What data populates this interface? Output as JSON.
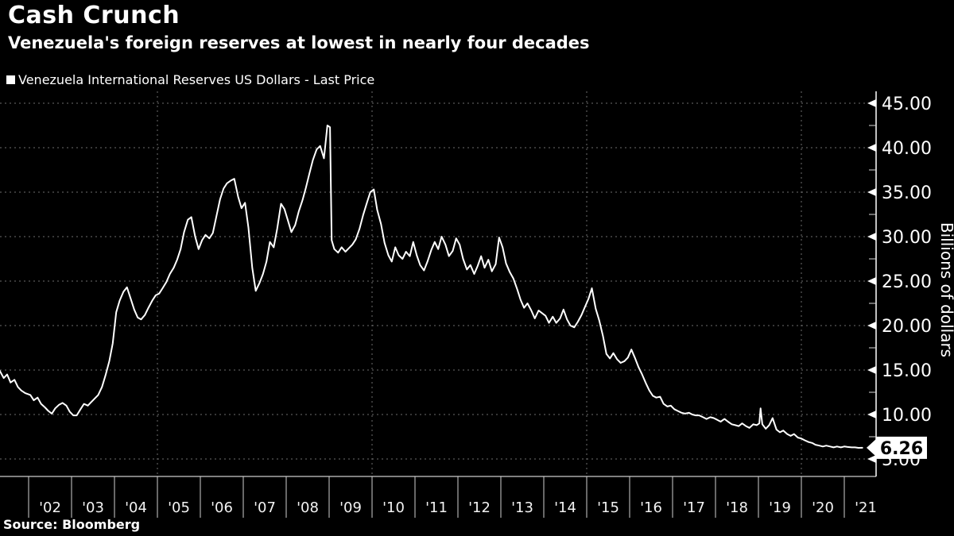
{
  "header": {
    "title": "Cash Crunch",
    "subtitle": "Venezuela's foreign reserves at lowest in nearly four decades"
  },
  "legend": {
    "label": "Venezuela International Reserves US Dollars - Last Price"
  },
  "source_note": "Source: Bloomberg",
  "last_price": {
    "value": "6.26"
  },
  "colors": {
    "background": "#000000",
    "line": "#ffffff",
    "grid": "#6e6e6e",
    "axis": "#ffffff",
    "tick_label": "#f2f2f2",
    "last_price_box_bg": "#ffffff",
    "last_price_text": "#000000"
  },
  "chart_data": {
    "type": "line",
    "title": "Cash Crunch",
    "subtitle": "Venezuela's foreign reserves at lowest in nearly four decades",
    "xlabel": "",
    "ylabel": "Billions of dollars",
    "legend_position": "top-left",
    "grid": "dashed",
    "ylim": [
      3.0,
      46.3
    ],
    "xlim": [
      2001.3,
      2021.7
    ],
    "y_major_ticks": [
      5,
      10,
      15,
      20,
      25,
      30,
      35,
      40,
      45
    ],
    "y_minor_step": 2.5,
    "x_tick_labels": [
      "'02",
      "'03",
      "'04",
      "'05",
      "'06",
      "'07",
      "'08",
      "'09",
      "'10",
      "'11",
      "'12",
      "'13",
      "'14",
      "'15",
      "'16",
      "'17",
      "'18",
      "'19",
      "'20",
      "'21"
    ],
    "x_tick_years": [
      2002,
      2003,
      2004,
      2005,
      2006,
      2007,
      2008,
      2009,
      2010,
      2011,
      2012,
      2013,
      2014,
      2015,
      2016,
      2017,
      2018,
      2019,
      2020,
      2021
    ],
    "x_gridline_years": [
      2005,
      2010,
      2015,
      2020
    ],
    "series": [
      {
        "name": "Venezuela International Reserves US Dollars - Last Price",
        "units": "billions of US dollars",
        "last_price": 6.26,
        "points": [
          [
            2001.33,
            14.9
          ],
          [
            2001.42,
            14.1
          ],
          [
            2001.5,
            14.5
          ],
          [
            2001.58,
            13.6
          ],
          [
            2001.67,
            13.9
          ],
          [
            2001.75,
            13.1
          ],
          [
            2001.83,
            12.7
          ],
          [
            2001.92,
            12.4
          ],
          [
            2002.04,
            12.2
          ],
          [
            2002.12,
            11.6
          ],
          [
            2002.21,
            11.9
          ],
          [
            2002.29,
            11.2
          ],
          [
            2002.38,
            10.8
          ],
          [
            2002.46,
            10.4
          ],
          [
            2002.54,
            10.1
          ],
          [
            2002.62,
            10.7
          ],
          [
            2002.71,
            11.1
          ],
          [
            2002.79,
            11.3
          ],
          [
            2002.88,
            11.0
          ],
          [
            2002.96,
            10.3
          ],
          [
            2003.04,
            9.9
          ],
          [
            2003.12,
            9.9
          ],
          [
            2003.21,
            10.6
          ],
          [
            2003.29,
            11.2
          ],
          [
            2003.38,
            11.0
          ],
          [
            2003.46,
            11.4
          ],
          [
            2003.54,
            11.8
          ],
          [
            2003.62,
            12.2
          ],
          [
            2003.71,
            13.1
          ],
          [
            2003.79,
            14.4
          ],
          [
            2003.88,
            16.0
          ],
          [
            2003.96,
            18.0
          ],
          [
            2004.04,
            21.5
          ],
          [
            2004.12,
            22.8
          ],
          [
            2004.21,
            23.8
          ],
          [
            2004.29,
            24.3
          ],
          [
            2004.38,
            23.0
          ],
          [
            2004.46,
            21.8
          ],
          [
            2004.54,
            20.9
          ],
          [
            2004.62,
            20.7
          ],
          [
            2004.71,
            21.2
          ],
          [
            2004.79,
            22.0
          ],
          [
            2004.88,
            22.8
          ],
          [
            2004.96,
            23.4
          ],
          [
            2005.04,
            23.6
          ],
          [
            2005.12,
            24.2
          ],
          [
            2005.21,
            24.9
          ],
          [
            2005.29,
            25.8
          ],
          [
            2005.38,
            26.5
          ],
          [
            2005.46,
            27.4
          ],
          [
            2005.54,
            28.6
          ],
          [
            2005.62,
            30.5
          ],
          [
            2005.71,
            31.9
          ],
          [
            2005.79,
            32.2
          ],
          [
            2005.88,
            30.0
          ],
          [
            2005.96,
            28.6
          ],
          [
            2006.04,
            29.6
          ],
          [
            2006.12,
            30.2
          ],
          [
            2006.21,
            29.8
          ],
          [
            2006.29,
            30.4
          ],
          [
            2006.38,
            32.4
          ],
          [
            2006.46,
            34.2
          ],
          [
            2006.54,
            35.4
          ],
          [
            2006.62,
            36.0
          ],
          [
            2006.71,
            36.3
          ],
          [
            2006.79,
            36.5
          ],
          [
            2006.88,
            34.5
          ],
          [
            2006.96,
            33.2
          ],
          [
            2007.04,
            33.8
          ],
          [
            2007.12,
            31.0
          ],
          [
            2007.21,
            26.5
          ],
          [
            2007.29,
            23.9
          ],
          [
            2007.38,
            24.8
          ],
          [
            2007.46,
            25.8
          ],
          [
            2007.54,
            27.2
          ],
          [
            2007.62,
            29.4
          ],
          [
            2007.71,
            28.8
          ],
          [
            2007.79,
            30.9
          ],
          [
            2007.88,
            33.7
          ],
          [
            2007.96,
            33.1
          ],
          [
            2008.04,
            31.8
          ],
          [
            2008.12,
            30.5
          ],
          [
            2008.21,
            31.3
          ],
          [
            2008.29,
            32.8
          ],
          [
            2008.38,
            34.1
          ],
          [
            2008.46,
            35.5
          ],
          [
            2008.54,
            37.1
          ],
          [
            2008.62,
            38.6
          ],
          [
            2008.71,
            39.8
          ],
          [
            2008.79,
            40.2
          ],
          [
            2008.88,
            38.8
          ],
          [
            2008.96,
            42.5
          ],
          [
            2009.02,
            42.3
          ],
          [
            2009.06,
            29.6
          ],
          [
            2009.12,
            28.6
          ],
          [
            2009.21,
            28.2
          ],
          [
            2009.29,
            28.8
          ],
          [
            2009.38,
            28.3
          ],
          [
            2009.46,
            28.7
          ],
          [
            2009.54,
            29.1
          ],
          [
            2009.62,
            29.7
          ],
          [
            2009.71,
            30.9
          ],
          [
            2009.79,
            32.4
          ],
          [
            2009.88,
            33.8
          ],
          [
            2009.96,
            35.0
          ],
          [
            2010.04,
            35.3
          ],
          [
            2010.12,
            33.0
          ],
          [
            2010.21,
            31.4
          ],
          [
            2010.29,
            29.3
          ],
          [
            2010.38,
            27.9
          ],
          [
            2010.46,
            27.2
          ],
          [
            2010.54,
            28.8
          ],
          [
            2010.62,
            27.9
          ],
          [
            2010.71,
            27.5
          ],
          [
            2010.79,
            28.3
          ],
          [
            2010.88,
            27.8
          ],
          [
            2010.96,
            29.4
          ],
          [
            2011.04,
            27.9
          ],
          [
            2011.12,
            26.8
          ],
          [
            2011.21,
            26.2
          ],
          [
            2011.29,
            27.2
          ],
          [
            2011.38,
            28.5
          ],
          [
            2011.46,
            29.4
          ],
          [
            2011.54,
            28.6
          ],
          [
            2011.62,
            30.0
          ],
          [
            2011.71,
            29.1
          ],
          [
            2011.79,
            27.8
          ],
          [
            2011.88,
            28.4
          ],
          [
            2011.96,
            29.8
          ],
          [
            2012.04,
            29.1
          ],
          [
            2012.12,
            27.5
          ],
          [
            2012.21,
            26.3
          ],
          [
            2012.29,
            26.8
          ],
          [
            2012.38,
            25.8
          ],
          [
            2012.46,
            26.7
          ],
          [
            2012.54,
            27.8
          ],
          [
            2012.62,
            26.5
          ],
          [
            2012.71,
            27.4
          ],
          [
            2012.79,
            26.1
          ],
          [
            2012.88,
            26.9
          ],
          [
            2012.96,
            29.9
          ],
          [
            2013.04,
            28.8
          ],
          [
            2013.12,
            27.0
          ],
          [
            2013.21,
            26.0
          ],
          [
            2013.29,
            25.3
          ],
          [
            2013.38,
            24.1
          ],
          [
            2013.46,
            22.9
          ],
          [
            2013.54,
            22.0
          ],
          [
            2013.62,
            22.5
          ],
          [
            2013.71,
            21.7
          ],
          [
            2013.79,
            20.8
          ],
          [
            2013.88,
            21.7
          ],
          [
            2013.96,
            21.4
          ],
          [
            2014.04,
            21.1
          ],
          [
            2014.12,
            20.3
          ],
          [
            2014.21,
            21.0
          ],
          [
            2014.29,
            20.3
          ],
          [
            2014.38,
            20.8
          ],
          [
            2014.46,
            21.8
          ],
          [
            2014.54,
            20.7
          ],
          [
            2014.62,
            20.0
          ],
          [
            2014.71,
            19.8
          ],
          [
            2014.79,
            20.4
          ],
          [
            2014.88,
            21.2
          ],
          [
            2014.96,
            22.1
          ],
          [
            2015.04,
            23.0
          ],
          [
            2015.12,
            24.2
          ],
          [
            2015.21,
            21.9
          ],
          [
            2015.29,
            20.6
          ],
          [
            2015.38,
            18.8
          ],
          [
            2015.46,
            16.8
          ],
          [
            2015.54,
            16.3
          ],
          [
            2015.62,
            16.9
          ],
          [
            2015.71,
            16.2
          ],
          [
            2015.79,
            15.8
          ],
          [
            2015.88,
            16.0
          ],
          [
            2015.96,
            16.4
          ],
          [
            2016.04,
            17.3
          ],
          [
            2016.12,
            16.4
          ],
          [
            2016.21,
            15.3
          ],
          [
            2016.29,
            14.5
          ],
          [
            2016.38,
            13.5
          ],
          [
            2016.46,
            12.7
          ],
          [
            2016.54,
            12.1
          ],
          [
            2016.62,
            11.9
          ],
          [
            2016.71,
            12.0
          ],
          [
            2016.79,
            11.2
          ],
          [
            2016.88,
            10.9
          ],
          [
            2016.96,
            11.0
          ],
          [
            2017.04,
            10.6
          ],
          [
            2017.12,
            10.4
          ],
          [
            2017.21,
            10.2
          ],
          [
            2017.29,
            10.1
          ],
          [
            2017.38,
            10.2
          ],
          [
            2017.46,
            10.0
          ],
          [
            2017.54,
            9.9
          ],
          [
            2017.62,
            9.9
          ],
          [
            2017.71,
            9.7
          ],
          [
            2017.79,
            9.5
          ],
          [
            2017.88,
            9.7
          ],
          [
            2017.96,
            9.6
          ],
          [
            2018.04,
            9.4
          ],
          [
            2018.12,
            9.2
          ],
          [
            2018.21,
            9.5
          ],
          [
            2018.29,
            9.2
          ],
          [
            2018.38,
            8.9
          ],
          [
            2018.46,
            8.8
          ],
          [
            2018.54,
            8.7
          ],
          [
            2018.62,
            9.0
          ],
          [
            2018.71,
            8.7
          ],
          [
            2018.79,
            8.5
          ],
          [
            2018.88,
            8.9
          ],
          [
            2018.96,
            8.8
          ],
          [
            2019.02,
            9.0
          ],
          [
            2019.05,
            10.7
          ],
          [
            2019.09,
            8.9
          ],
          [
            2019.17,
            8.4
          ],
          [
            2019.25,
            8.8
          ],
          [
            2019.33,
            9.6
          ],
          [
            2019.42,
            8.3
          ],
          [
            2019.5,
            8.0
          ],
          [
            2019.58,
            8.2
          ],
          [
            2019.67,
            7.8
          ],
          [
            2019.75,
            7.6
          ],
          [
            2019.83,
            7.8
          ],
          [
            2019.92,
            7.4
          ],
          [
            2020.0,
            7.3
          ],
          [
            2020.08,
            7.1
          ],
          [
            2020.17,
            6.9
          ],
          [
            2020.25,
            6.8
          ],
          [
            2020.33,
            6.6
          ],
          [
            2020.42,
            6.5
          ],
          [
            2020.5,
            6.4
          ],
          [
            2020.58,
            6.5
          ],
          [
            2020.67,
            6.4
          ],
          [
            2020.75,
            6.3
          ],
          [
            2020.83,
            6.4
          ],
          [
            2020.92,
            6.3
          ],
          [
            2021.0,
            6.4
          ],
          [
            2021.08,
            6.35
          ],
          [
            2021.17,
            6.3
          ],
          [
            2021.25,
            6.3
          ],
          [
            2021.33,
            6.25
          ],
          [
            2021.42,
            6.26
          ]
        ]
      }
    ]
  }
}
